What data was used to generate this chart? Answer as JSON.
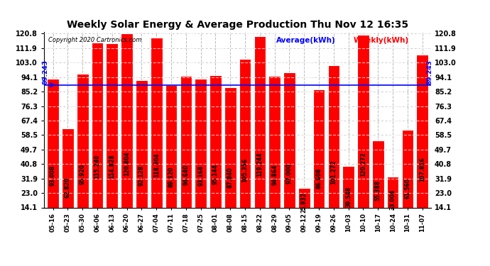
{
  "title": "Weekly Solar Energy & Average Production Thu Nov 12 16:35",
  "copyright": "Copyright 2020 Cartronics.com",
  "legend_average": "Average(kWh)",
  "legend_weekly": "Weekly(kWh)",
  "average": 89.243,
  "categories": [
    "05-16",
    "05-23",
    "05-30",
    "06-06",
    "06-13",
    "06-20",
    "06-27",
    "07-04",
    "07-11",
    "07-18",
    "07-25",
    "08-01",
    "08-08",
    "08-15",
    "08-22",
    "08-29",
    "09-05",
    "09-12",
    "09-19",
    "09-26",
    "10-03",
    "10-10",
    "10-17",
    "10-24",
    "10-31",
    "11-07"
  ],
  "values": [
    93.008,
    62.82,
    95.92,
    115.24,
    114.828,
    120.804,
    92.128,
    118.304,
    89.12,
    94.64,
    93.168,
    95.144,
    87.84,
    105.356,
    119.244,
    94.864,
    97.0,
    25.932,
    86.608,
    101.272,
    39.548,
    120.272,
    55.388,
    33.004,
    61.56,
    107.816
  ],
  "bar_color": "#ff0000",
  "avg_line_color": "#0000ff",
  "background_color": "#ffffff",
  "grid_color": "#bbbbbb",
  "title_color": "#000000",
  "copyright_color": "#000000",
  "avg_label_color": "#0000ff",
  "weekly_label_color": "#ff0000",
  "yticks": [
    14.1,
    23.0,
    31.9,
    40.8,
    49.7,
    58.5,
    67.4,
    76.3,
    85.2,
    94.1,
    103.0,
    111.9,
    120.8
  ],
  "ymin": 14.1,
  "ymax": 120.8,
  "bar_edge_color": "#ffffff",
  "bar_linewidth": 0.8,
  "bar_width": 0.8,
  "title_fontsize": 10,
  "label_fontsize": 5.5,
  "tick_fontsize": 7,
  "copyright_fontsize": 6,
  "legend_fontsize": 7.5,
  "avg_fontsize": 6.5
}
